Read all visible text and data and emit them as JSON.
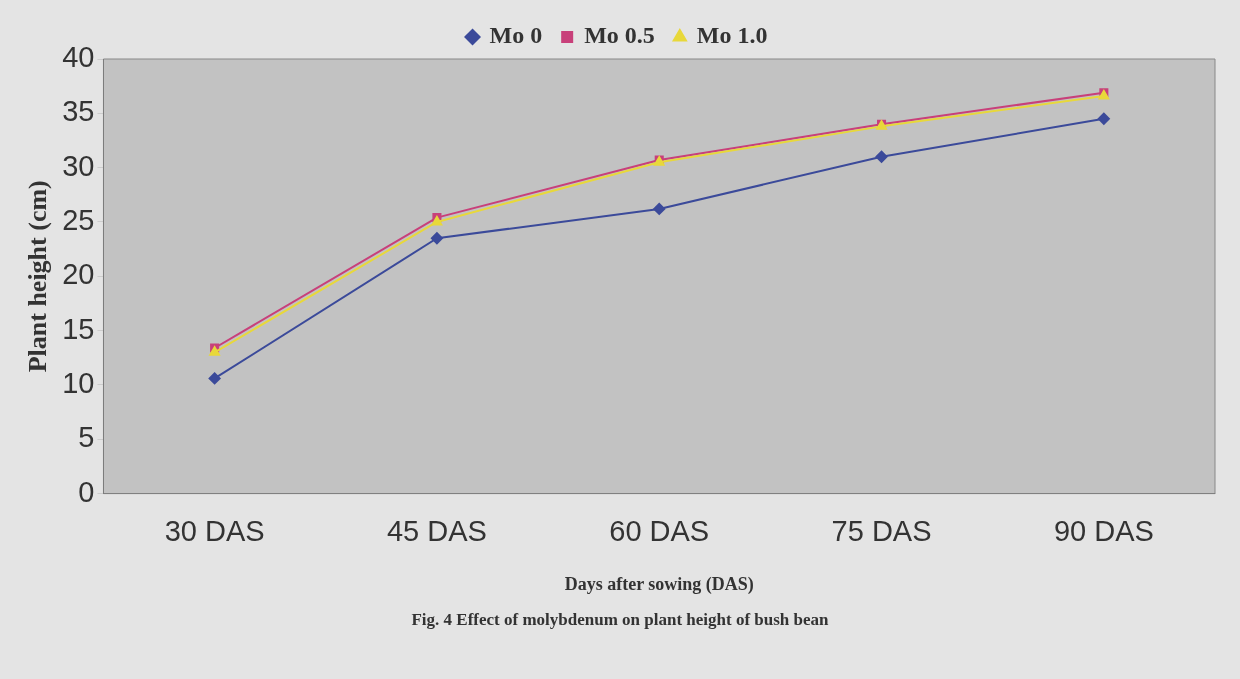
{
  "chart_data": {
    "type": "line",
    "categories": [
      "30 DAS",
      "45 DAS",
      "60 DAS",
      "75 DAS",
      "90 DAS"
    ],
    "series": [
      {
        "name": "Mo 0",
        "color": "#3b4a9a",
        "marker": "diamond",
        "values": [
          10.6,
          23.5,
          26.2,
          31.0,
          34.5
        ]
      },
      {
        "name": "Mo 0.5",
        "color": "#c8407a",
        "marker": "square",
        "values": [
          13.4,
          25.4,
          30.7,
          34.0,
          36.9
        ]
      },
      {
        "name": "Mo 1.0",
        "color": "#e8d83a",
        "marker": "triangle",
        "values": [
          13.0,
          25.0,
          30.5,
          33.8,
          36.6
        ]
      }
    ],
    "xlabel": "Days after sowing (DAS)",
    "ylabel": "Plant height (cm)",
    "ylim": [
      0,
      40
    ],
    "yticks": [
      0,
      5,
      10,
      15,
      20,
      25,
      30,
      35,
      40
    ],
    "grid": false,
    "legend": "top",
    "annotations": [
      "Fig. 4 Effect of molybdenum on plant height of bush bean"
    ]
  }
}
